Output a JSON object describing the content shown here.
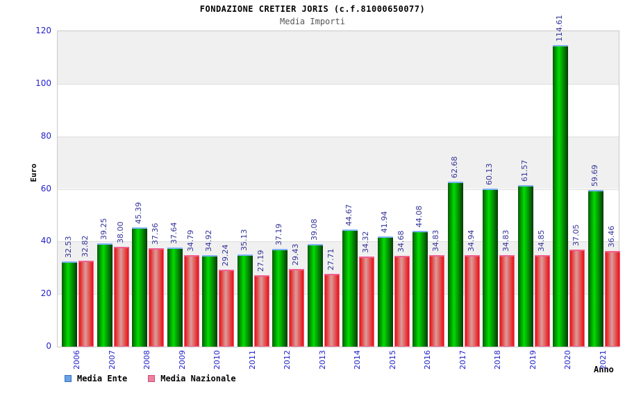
{
  "header": {
    "title": "FONDAZIONE CRETIER JORIS (c.f.81000650077)",
    "subtitle": "Media Importi"
  },
  "chart_data": {
    "type": "bar",
    "title": "FONDAZIONE CRETIER JORIS (c.f.81000650077)",
    "subtitle": "Media Importi",
    "xlabel": "Anno",
    "ylabel": "Euro",
    "ylim": [
      0,
      120
    ],
    "ytick_step": 20,
    "yticks": [
      0,
      20,
      40,
      60,
      80,
      100,
      120
    ],
    "grid": "alternating-horizontal-bands",
    "legend_position": "bottom-left",
    "value_label_format": "2-decimals",
    "categories": [
      "2006",
      "2007",
      "2008",
      "2009",
      "2010",
      "2011",
      "2012",
      "2013",
      "2014",
      "2015",
      "2016",
      "2017",
      "2018",
      "2019",
      "2020",
      "2021"
    ],
    "series": [
      {
        "name": "Media Ente",
        "values": [
          32.53,
          39.25,
          45.39,
          37.64,
          34.92,
          35.13,
          37.19,
          39.08,
          44.67,
          41.94,
          44.08,
          62.68,
          60.13,
          61.57,
          114.61,
          59.69
        ]
      },
      {
        "name": "Media Nazionale",
        "values": [
          32.82,
          38.0,
          37.36,
          34.79,
          29.24,
          27.19,
          29.43,
          27.71,
          34.32,
          34.68,
          34.83,
          34.94,
          34.83,
          34.85,
          37.05,
          36.46
        ]
      }
    ]
  },
  "colors": {
    "ente_bar_bright": "#00dd00",
    "ente_bar_dark": "#075907",
    "ente_bar_darker": "#033903",
    "ente_bar_top_highlight": "#7fb2f9",
    "nazionale_bar_edge": "#e81010",
    "nazionale_bar_center": "#dc9c9c",
    "nazionale_bar_border": "#f06090",
    "legend_ente_fill": "#66a3e8",
    "legend_ente_border": "#3a6db8",
    "legend_nazionale_fill": "#ef7f9f",
    "legend_nazionale_border": "#cc4f74",
    "tick_label": "#2222cc",
    "value_label": "#333399",
    "band_gray": "#f0f0f0",
    "gridline": "#dddddd",
    "plot_border": "#c8c8c8",
    "subtitle_color": "#555555"
  }
}
